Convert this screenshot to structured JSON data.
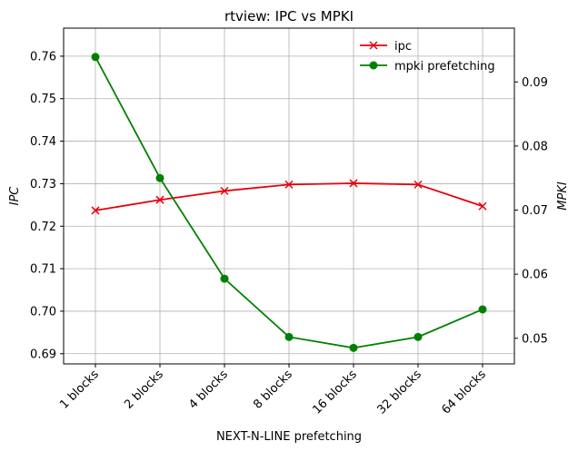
{
  "chart_data": {
    "type": "line",
    "title": "rtview: IPC vs MPKI",
    "xlabel": "NEXT-N-LINE prefetching",
    "ylabel_left": "IPC",
    "ylabel_right": "MPKI",
    "categories": [
      "1 blocks",
      "2 blocks",
      "4 blocks",
      "8 blocks",
      "16 blocks",
      "32 blocks",
      "64 blocks"
    ],
    "ylim_left": [
      0.6876,
      0.7666
    ],
    "ylim_right": [
      0.046,
      0.0984
    ],
    "yticks_left": [
      "0.69",
      "0.70",
      "0.71",
      "0.72",
      "0.73",
      "0.74",
      "0.75",
      "0.76"
    ],
    "yticks_right": [
      "0.05",
      "0.06",
      "0.07",
      "0.08",
      "0.09"
    ],
    "grid": true,
    "legend_position": "upper right",
    "series": [
      {
        "name": "ipc",
        "axis": "left",
        "marker": "x",
        "color": "#e8000b",
        "values": [
          0.7237,
          0.7262,
          0.7283,
          0.7298,
          0.7301,
          0.7298,
          0.7247
        ]
      },
      {
        "name": "mpki prefetching",
        "axis": "right",
        "marker": "o",
        "color": "#008000",
        "values": [
          0.0939,
          0.075,
          0.0593,
          0.0502,
          0.0485,
          0.0502,
          0.0545
        ]
      }
    ]
  }
}
